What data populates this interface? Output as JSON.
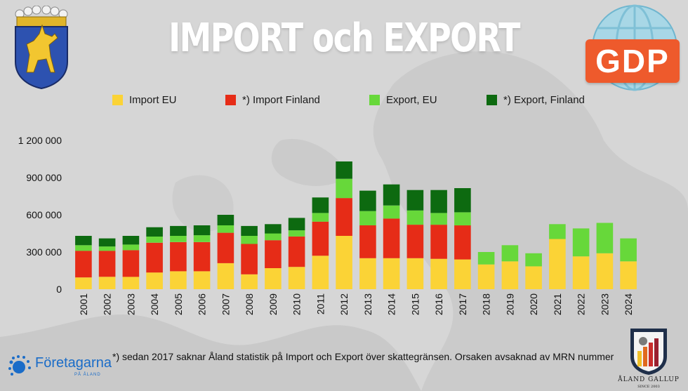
{
  "header": {
    "title": "IMPORT och EXPORT",
    "badge": "GDP"
  },
  "legend": [
    {
      "label": "Import EU",
      "color": "#fbd336"
    },
    {
      "label": "*) Import Finland",
      "color": "#e62c17"
    },
    {
      "label": "Export, EU",
      "color": "#67d83a"
    },
    {
      "label": "*) Export, Finland",
      "color": "#0d6a10"
    }
  ],
  "footnote": "*) sedan 2017 saknar Åland statistik på Import och Export över skattegränsen. Orsaken avsaknad av MRN nummer",
  "logos": {
    "foretagarna_name": "Företagarna",
    "foretagarna_sub": "PÅ ÅLAND",
    "gallup_name": "ÅLAND GALLUP",
    "gallup_since": "SINCE 2003"
  },
  "chart_data": {
    "type": "bar",
    "stacked": true,
    "categories": [
      "2001",
      "2002",
      "2003",
      "2004",
      "2005",
      "2006",
      "2007",
      "2008",
      "2009",
      "2010",
      "2011",
      "2012",
      "2013",
      "2014",
      "2015",
      "2016",
      "2017",
      "2018",
      "2019",
      "2020",
      "2021",
      "2022",
      "2023",
      "2024"
    ],
    "series": [
      {
        "name": "Import EU",
        "color": "#fbd336",
        "values": [
          95000,
          100000,
          100000,
          135000,
          145000,
          145000,
          210000,
          120000,
          170000,
          180000,
          270000,
          430000,
          250000,
          250000,
          250000,
          245000,
          240000,
          200000,
          225000,
          185000,
          405000,
          265000,
          290000,
          225000
        ]
      },
      {
        "name": "*) Import Finland",
        "color": "#e62c17",
        "values": [
          215000,
          210000,
          215000,
          240000,
          235000,
          235000,
          245000,
          245000,
          225000,
          245000,
          275000,
          305000,
          265000,
          320000,
          270000,
          275000,
          275000,
          0,
          0,
          0,
          0,
          0,
          0,
          0
        ]
      },
      {
        "name": "Export, EU",
        "color": "#67d83a",
        "values": [
          45000,
          35000,
          45000,
          50000,
          50000,
          55000,
          60000,
          65000,
          55000,
          50000,
          70000,
          155000,
          115000,
          105000,
          115000,
          95000,
          105000,
          100000,
          130000,
          105000,
          120000,
          225000,
          245000,
          185000
        ]
      },
      {
        "name": "*) Export, Finland",
        "color": "#0d6a10",
        "values": [
          75000,
          65000,
          70000,
          75000,
          80000,
          80000,
          85000,
          80000,
          75000,
          100000,
          125000,
          140000,
          165000,
          170000,
          165000,
          185000,
          195000,
          0,
          0,
          0,
          0,
          0,
          0,
          0
        ]
      }
    ],
    "yticks": [
      "0",
      "300 000",
      "600 000",
      "900 000",
      "1 200 000"
    ],
    "ytick_values": [
      0,
      300000,
      600000,
      900000,
      1200000
    ],
    "ylim": [
      0,
      1200000
    ],
    "grid": false,
    "legend_position": "top"
  }
}
